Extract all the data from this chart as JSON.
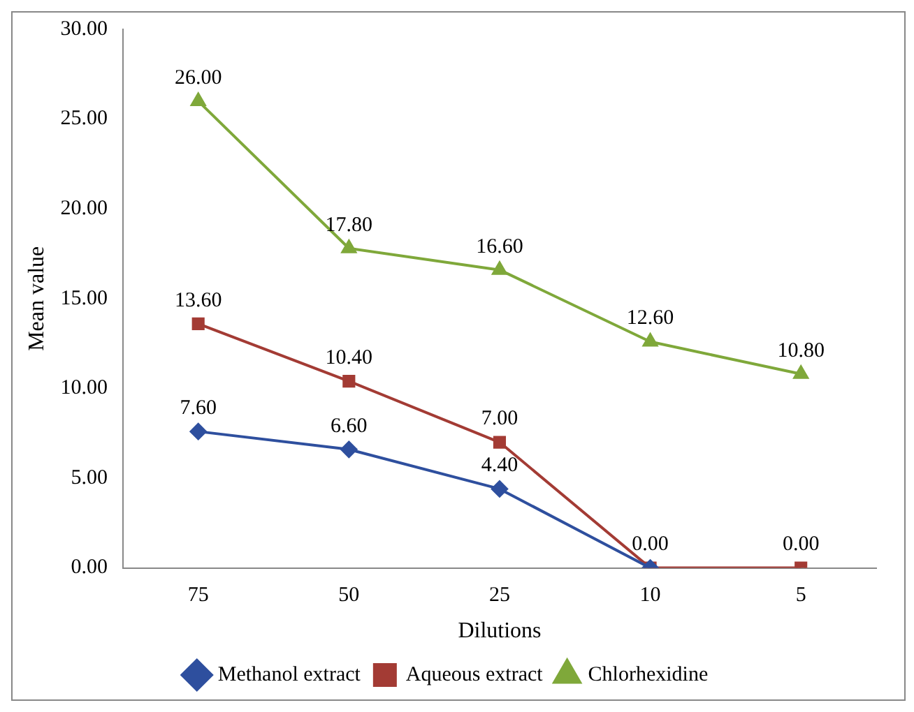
{
  "chart_data": {
    "type": "line",
    "xlabel": "Dilutions",
    "ylabel": "Mean value",
    "categories": [
      "75",
      "50",
      "25",
      "10",
      "5"
    ],
    "ylim": [
      0,
      30
    ],
    "yticks": [
      {
        "value": 0,
        "label": "0.00"
      },
      {
        "value": 5,
        "label": "5.00"
      },
      {
        "value": 10,
        "label": "10.00"
      },
      {
        "value": 15,
        "label": "15.00"
      },
      {
        "value": 20,
        "label": "20.00"
      },
      {
        "value": 25,
        "label": "25.00"
      },
      {
        "value": 30,
        "label": "30.00"
      }
    ],
    "grid": false,
    "legend": "bottom",
    "series": [
      {
        "name": "Methanol extract",
        "color": "#2e4f9e",
        "marker": "diamond",
        "values": [
          7.6,
          6.6,
          4.4,
          0,
          null
        ],
        "value_labels": [
          "7.60",
          "6.60",
          "4.40",
          null,
          null
        ]
      },
      {
        "name": "Aqueous extract",
        "color": "#a33b34",
        "marker": "square",
        "values": [
          13.6,
          10.4,
          7.0,
          0,
          0
        ],
        "value_labels": [
          "13.60",
          "10.40",
          "7.00",
          "0.00",
          "0.00"
        ]
      },
      {
        "name": "Chlorhexidine",
        "color": "#7fa83a",
        "marker": "triangle",
        "values": [
          26.0,
          17.8,
          16.6,
          12.6,
          10.8
        ],
        "value_labels": [
          "26.00",
          "17.80",
          "16.60",
          "12.60",
          "10.80"
        ]
      }
    ]
  }
}
